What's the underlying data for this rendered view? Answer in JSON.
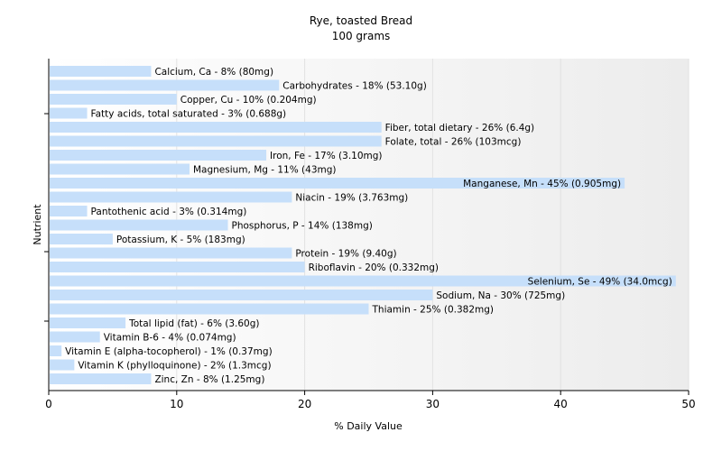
{
  "chart_data": {
    "type": "bar",
    "orientation": "horizontal",
    "title": "Rye, toasted Bread",
    "subtitle": "100 grams",
    "xlabel": "% Daily Value",
    "ylabel": "Nutrient",
    "xlim": [
      0,
      50
    ],
    "xticks": [
      0,
      10,
      20,
      30,
      40,
      50
    ],
    "grid": true,
    "bar_color": "#c6dffa",
    "bars": [
      {
        "name": "Calcium, Ca",
        "value": 8,
        "label": "Calcium, Ca - 8% (80mg)"
      },
      {
        "name": "Carbohydrates",
        "value": 18,
        "label": "Carbohydrates - 18% (53.10g)"
      },
      {
        "name": "Copper, Cu",
        "value": 10,
        "label": "Copper, Cu - 10% (0.204mg)"
      },
      {
        "name": "Fatty acids, total saturated",
        "value": 3,
        "label": "Fatty acids, total saturated - 3% (0.688g)"
      },
      {
        "name": "Fiber, total dietary",
        "value": 26,
        "label": "Fiber, total dietary - 26% (6.4g)"
      },
      {
        "name": "Folate, total",
        "value": 26,
        "label": "Folate, total - 26% (103mcg)"
      },
      {
        "name": "Iron, Fe",
        "value": 17,
        "label": "Iron, Fe - 17% (3.10mg)"
      },
      {
        "name": "Magnesium, Mg",
        "value": 11,
        "label": "Magnesium, Mg - 11% (43mg)"
      },
      {
        "name": "Manganese, Mn",
        "value": 45,
        "label": "Manganese, Mn - 45% (0.905mg)"
      },
      {
        "name": "Niacin",
        "value": 19,
        "label": "Niacin - 19% (3.763mg)"
      },
      {
        "name": "Pantothenic acid",
        "value": 3,
        "label": "Pantothenic acid - 3% (0.314mg)"
      },
      {
        "name": "Phosphorus, P",
        "value": 14,
        "label": "Phosphorus, P - 14% (138mg)"
      },
      {
        "name": "Potassium, K",
        "value": 5,
        "label": "Potassium, K - 5% (183mg)"
      },
      {
        "name": "Protein",
        "value": 19,
        "label": "Protein - 19% (9.40g)"
      },
      {
        "name": "Riboflavin",
        "value": 20,
        "label": "Riboflavin - 20% (0.332mg)"
      },
      {
        "name": "Selenium, Se",
        "value": 49,
        "label": "Selenium, Se - 49% (34.0mcg)"
      },
      {
        "name": "Sodium, Na",
        "value": 30,
        "label": "Sodium, Na - 30% (725mg)"
      },
      {
        "name": "Thiamin",
        "value": 25,
        "label": "Thiamin - 25% (0.382mg)"
      },
      {
        "name": "Total lipid (fat)",
        "value": 6,
        "label": "Total lipid (fat) - 6% (3.60g)"
      },
      {
        "name": "Vitamin B-6",
        "value": 4,
        "label": "Vitamin B-6 - 4% (0.074mg)"
      },
      {
        "name": "Vitamin E (alpha-tocopherol)",
        "value": 1,
        "label": "Vitamin E (alpha-tocopherol) - 1% (0.37mg)"
      },
      {
        "name": "Vitamin K (phylloquinone)",
        "value": 2,
        "label": "Vitamin K (phylloquinone) - 2% (1.3mcg)"
      },
      {
        "name": "Zinc, Zn",
        "value": 8,
        "label": "Zinc, Zn - 8% (1.25mg)"
      }
    ]
  }
}
